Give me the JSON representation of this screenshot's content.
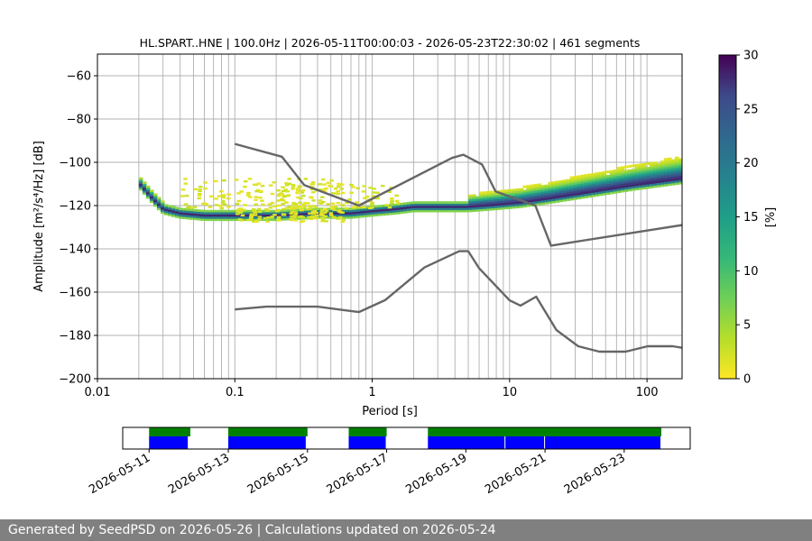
{
  "colors": {
    "noise_model": "#666666",
    "coverage_data": "#0000ff",
    "coverage_gaps": "#008000",
    "grid": "#b0b0b0",
    "footer_bg": "#808080"
  },
  "chart_data": [
    {
      "type": "heatmap",
      "title": "HL.SPART..HNE | 100.0Hz | 2026-05-11T00:00:03 - 2026-05-23T22:30:02 | 461 segments",
      "xlabel": "Period [s]",
      "ylabel": "Amplitude [m²/s⁴/Hz] [dB]",
      "x_scale": "log",
      "xlim": [
        0.01,
        180
      ],
      "ylim": [
        -200,
        -50
      ],
      "x_tick_labels": [
        "0.01",
        "0.1",
        "1",
        "10",
        "100"
      ],
      "x_ticks": [
        0.01,
        0.1,
        1,
        10,
        100
      ],
      "y_ticks": [
        -200,
        -180,
        -160,
        -140,
        -120,
        -100,
        -80,
        -60
      ],
      "y_tick_labels": [
        "−200",
        "−180",
        "−160",
        "−140",
        "−120",
        "−100",
        "−80",
        "−60"
      ],
      "grid": true,
      "colormap": "viridis_r",
      "colorbar": {
        "label": "[%]",
        "min": 0,
        "max": 30,
        "ticks": [
          0,
          5,
          10,
          15,
          20,
          25,
          30
        ],
        "tick_labels": [
          "0",
          "5",
          "10",
          "15",
          "20",
          "25",
          "30"
        ]
      },
      "psd_mode": [
        [
          0.02,
          -110
        ],
        [
          0.025,
          -117
        ],
        [
          0.03,
          -122
        ],
        [
          0.04,
          -124
        ],
        [
          0.06,
          -125
        ],
        [
          0.1,
          -125
        ],
        [
          0.2,
          -125
        ],
        [
          0.4,
          -124
        ],
        [
          0.7,
          -124
        ],
        [
          1,
          -123
        ],
        [
          1.5,
          -122
        ],
        [
          2,
          -121
        ],
        [
          3,
          -121
        ],
        [
          5,
          -121
        ],
        [
          8,
          -120
        ],
        [
          12,
          -119
        ],
        [
          20,
          -117
        ],
        [
          40,
          -114
        ],
        [
          80,
          -111
        ],
        [
          180,
          -108
        ]
      ],
      "psd_sparse_clusters": [
        {
          "period_range": [
            0.04,
            0.5
          ],
          "db_range": [
            -122,
            -108
          ]
        },
        {
          "period_range": [
            0.2,
            1.5
          ],
          "db_range": [
            -122,
            -110
          ]
        },
        {
          "period_range": [
            0.1,
            0.6
          ],
          "db_range": [
            -128,
            -122
          ]
        }
      ],
      "nhnm": [
        [
          0.1,
          -91.5
        ],
        [
          0.22,
          -97.4
        ],
        [
          0.32,
          -110.5
        ],
        [
          0.8,
          -120
        ],
        [
          3.8,
          -98
        ],
        [
          4.6,
          -96.5
        ],
        [
          6.3,
          -101
        ],
        [
          7.9,
          -113.5
        ],
        [
          15.4,
          -120
        ],
        [
          20,
          -138.5
        ],
        [
          180,
          -129
        ]
      ],
      "nlnm": [
        [
          0.1,
          -168
        ],
        [
          0.17,
          -166.7
        ],
        [
          0.4,
          -166.7
        ],
        [
          0.8,
          -169.2
        ],
        [
          1.24,
          -163.7
        ],
        [
          2.4,
          -148.6
        ],
        [
          4.3,
          -141.1
        ],
        [
          5,
          -141.1
        ],
        [
          6,
          -149
        ],
        [
          10,
          -163.8
        ],
        [
          12,
          -166.2
        ],
        [
          15.6,
          -162.1
        ],
        [
          21.9,
          -177.5
        ],
        [
          31.6,
          -185
        ],
        [
          45,
          -187.5
        ],
        [
          70,
          -187.5
        ],
        [
          101,
          -185
        ],
        [
          154,
          -185
        ],
        [
          180,
          -185.7
        ]
      ]
    },
    {
      "type": "bar",
      "name": "data coverage timeline",
      "x_tick_labels": [
        "2026-05-11",
        "2026-05-13",
        "2026-05-15",
        "2026-05-17",
        "2026-05-19",
        "2026-05-21",
        "2026-05-23"
      ],
      "x_ticks": [
        "2026-05-11",
        "2026-05-13",
        "2026-05-15",
        "2026-05-17",
        "2026-05-19",
        "2026-05-21",
        "2026-05-23"
      ],
      "xlim": [
        "2026-05-10T08:00",
        "2026-05-24T16:00"
      ],
      "coverage_segments": [
        [
          "2026-05-11T00:00",
          "2026-05-12T00:00"
        ],
        [
          "2026-05-13T00:00",
          "2026-05-14T23:30"
        ],
        [
          "2026-05-16T01:00",
          "2026-05-17T00:00"
        ],
        [
          "2026-05-18T01:00",
          "2026-05-20T00:00"
        ],
        [
          "2026-05-20T00:00",
          "2026-05-21T00:00"
        ],
        [
          "2026-05-21T00:00",
          "2026-05-23T22:30"
        ]
      ],
      "gap_segments": [
        [
          "2026-05-11T00:00",
          "2026-05-12T01:00"
        ],
        [
          "2026-05-13T00:00",
          "2026-05-15T00:00"
        ],
        [
          "2026-05-16T01:00",
          "2026-05-17T00:00"
        ],
        [
          "2026-05-18T01:00",
          "2026-05-23T22:30"
        ]
      ]
    }
  ],
  "footer": {
    "text": "Generated by SeedPSD on 2026-05-26 | Calculations updated on 2026-05-24"
  }
}
